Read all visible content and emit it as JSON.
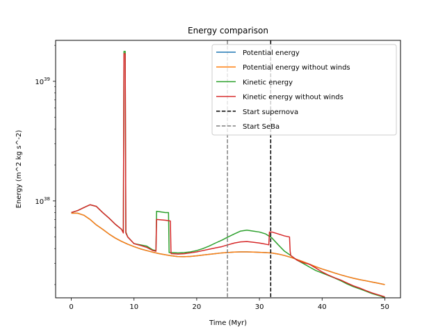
{
  "chart_data": {
    "type": "line",
    "title": "Energy comparison",
    "xlabel": "Time (Myr)",
    "ylabel": "Energy (m^2 kg s^-2)",
    "xlim": [
      -2.5,
      52.5
    ],
    "ylim": [
      1.55e+37,
      2.2e+39
    ],
    "yscale": "log",
    "x_ticks": [
      0,
      10,
      20,
      30,
      40,
      50
    ],
    "x_tick_labels": [
      "0",
      "10",
      "20",
      "30",
      "40",
      "50"
    ],
    "y_ticks": [
      1e+38,
      1e+39
    ],
    "y_tick_labels": [
      {
        "base": "10",
        "exp": "38"
      },
      {
        "base": "10",
        "exp": "39"
      }
    ],
    "grid": false,
    "legend_position": "upper right",
    "series": [
      {
        "name": "Potential energy",
        "color": "#1f77b4",
        "style": "solid",
        "points": [
          [
            0,
            7.9e+37
          ],
          [
            1,
            7.9e+37
          ],
          [
            2,
            7.6e+37
          ],
          [
            3,
            7e+37
          ],
          [
            4,
            6.3e+37
          ],
          [
            5,
            5.8e+37
          ],
          [
            6,
            5.3e+37
          ],
          [
            7,
            4.9e+37
          ],
          [
            8,
            4.6e+37
          ],
          [
            9,
            4.35e+37
          ],
          [
            10,
            4.15e+37
          ],
          [
            11,
            3.98e+37
          ],
          [
            12,
            3.85e+37
          ],
          [
            13,
            3.73e+37
          ],
          [
            14,
            3.63e+37
          ],
          [
            15,
            3.55e+37
          ],
          [
            16,
            3.48e+37
          ],
          [
            17,
            3.43e+37
          ],
          [
            18,
            3.42e+37
          ],
          [
            19,
            3.44e+37
          ],
          [
            20,
            3.48e+37
          ],
          [
            21,
            3.53e+37
          ],
          [
            22,
            3.58e+37
          ],
          [
            23,
            3.63e+37
          ],
          [
            24,
            3.68e+37
          ],
          [
            25,
            3.71e+37
          ],
          [
            26,
            3.74e+37
          ],
          [
            27,
            3.75e+37
          ],
          [
            28,
            3.75e+37
          ],
          [
            29,
            3.74e+37
          ],
          [
            30,
            3.72e+37
          ],
          [
            31,
            3.7e+37
          ],
          [
            32,
            3.67e+37
          ],
          [
            33,
            3.6e+37
          ],
          [
            34,
            3.5e+37
          ],
          [
            35,
            3.38e+37
          ],
          [
            36,
            3.24e+37
          ],
          [
            37,
            3.1e+37
          ],
          [
            38,
            2.96e+37
          ],
          [
            39,
            2.82e+37
          ],
          [
            40,
            2.7e+37
          ],
          [
            41,
            2.6e+37
          ],
          [
            42,
            2.5e+37
          ],
          [
            43,
            2.41e+37
          ],
          [
            44,
            2.33e+37
          ],
          [
            45,
            2.26e+37
          ],
          [
            46,
            2.2e+37
          ],
          [
            47,
            2.15e+37
          ],
          [
            48,
            2.1e+37
          ],
          [
            49,
            2.05e+37
          ],
          [
            50,
            2e+37
          ]
        ]
      },
      {
        "name": "Potential energy without winds",
        "color": "#ff7f0e",
        "style": "solid",
        "points": [
          [
            0,
            7.9e+37
          ],
          [
            1,
            7.9e+37
          ],
          [
            2,
            7.6e+37
          ],
          [
            3,
            7e+37
          ],
          [
            4,
            6.3e+37
          ],
          [
            5,
            5.8e+37
          ],
          [
            6,
            5.3e+37
          ],
          [
            7,
            4.9e+37
          ],
          [
            8,
            4.6e+37
          ],
          [
            9,
            4.35e+37
          ],
          [
            10,
            4.15e+37
          ],
          [
            11,
            3.98e+37
          ],
          [
            12,
            3.85e+37
          ],
          [
            13,
            3.73e+37
          ],
          [
            14,
            3.63e+37
          ],
          [
            15,
            3.55e+37
          ],
          [
            16,
            3.48e+37
          ],
          [
            17,
            3.43e+37
          ],
          [
            18,
            3.42e+37
          ],
          [
            19,
            3.44e+37
          ],
          [
            20,
            3.48e+37
          ],
          [
            21,
            3.53e+37
          ],
          [
            22,
            3.58e+37
          ],
          [
            23,
            3.63e+37
          ],
          [
            24,
            3.68e+37
          ],
          [
            25,
            3.71e+37
          ],
          [
            26,
            3.74e+37
          ],
          [
            27,
            3.75e+37
          ],
          [
            28,
            3.75e+37
          ],
          [
            29,
            3.74e+37
          ],
          [
            30,
            3.72e+37
          ],
          [
            31,
            3.7e+37
          ],
          [
            32,
            3.67e+37
          ],
          [
            33,
            3.6e+37
          ],
          [
            34,
            3.5e+37
          ],
          [
            35,
            3.38e+37
          ],
          [
            36,
            3.24e+37
          ],
          [
            37,
            3.1e+37
          ],
          [
            38,
            2.96e+37
          ],
          [
            39,
            2.82e+37
          ],
          [
            40,
            2.7e+37
          ],
          [
            41,
            2.6e+37
          ],
          [
            42,
            2.5e+37
          ],
          [
            43,
            2.41e+37
          ],
          [
            44,
            2.33e+37
          ],
          [
            45,
            2.26e+37
          ],
          [
            46,
            2.2e+37
          ],
          [
            47,
            2.15e+37
          ],
          [
            48,
            2.1e+37
          ],
          [
            49,
            2.05e+37
          ],
          [
            50,
            2e+37
          ]
        ]
      },
      {
        "name": "Kinetic energy",
        "color": "#2ca02c",
        "style": "solid",
        "points": [
          [
            0,
            8e+37
          ],
          [
            1,
            8.3e+37
          ],
          [
            2,
            8.8e+37
          ],
          [
            3,
            9.3e+37
          ],
          [
            4,
            9e+37
          ],
          [
            5,
            8e+37
          ],
          [
            6,
            7.2e+37
          ],
          [
            7,
            6.4e+37
          ],
          [
            8,
            5.8e+37
          ],
          [
            8.3,
            5.5e+37
          ],
          [
            8.4,
            1.78e+39
          ],
          [
            8.6,
            1.78e+39
          ],
          [
            8.7,
            5.5e+37
          ],
          [
            9,
            5e+37
          ],
          [
            10,
            4.4e+37
          ],
          [
            11,
            4.3e+37
          ],
          [
            12,
            4.2e+37
          ],
          [
            13,
            3.9e+37
          ],
          [
            13.5,
            3.85e+37
          ],
          [
            13.6,
            8.2e+37
          ],
          [
            15,
            8e+37
          ],
          [
            15.5,
            8e+37
          ],
          [
            15.6,
            3.7e+37
          ],
          [
            16,
            3.7e+37
          ],
          [
            17,
            3.68e+37
          ],
          [
            18,
            3.7e+37
          ],
          [
            19,
            3.75e+37
          ],
          [
            20,
            3.85e+37
          ],
          [
            21,
            4e+37
          ],
          [
            22,
            4.2e+37
          ],
          [
            23,
            4.45e+37
          ],
          [
            24,
            4.7e+37
          ],
          [
            25,
            5e+37
          ],
          [
            26,
            5.3e+37
          ],
          [
            27,
            5.6e+37
          ],
          [
            28,
            5.7e+37
          ],
          [
            29,
            5.6e+37
          ],
          [
            30,
            5.5e+37
          ],
          [
            31,
            5.3e+37
          ],
          [
            32,
            4.9e+37
          ],
          [
            33,
            4.3e+37
          ],
          [
            34,
            3.8e+37
          ],
          [
            35,
            3.5e+37
          ],
          [
            36,
            3.2e+37
          ],
          [
            37,
            3e+37
          ],
          [
            38,
            2.8e+37
          ],
          [
            39,
            2.62e+37
          ],
          [
            40,
            2.5e+37
          ],
          [
            41,
            2.38e+37
          ],
          [
            42,
            2.27e+37
          ],
          [
            43,
            2.15e+37
          ],
          [
            44,
            2.02e+37
          ],
          [
            45,
            1.92e+37
          ],
          [
            46,
            1.84e+37
          ],
          [
            47,
            1.76e+37
          ],
          [
            48,
            1.68e+37
          ],
          [
            49,
            1.62e+37
          ],
          [
            50,
            1.56e+37
          ]
        ]
      },
      {
        "name": "Kinetic energy without winds",
        "color": "#d62728",
        "style": "solid",
        "points": [
          [
            0,
            8e+37
          ],
          [
            1,
            8.3e+37
          ],
          [
            2,
            8.8e+37
          ],
          [
            3,
            9.3e+37
          ],
          [
            4,
            9e+37
          ],
          [
            5,
            8e+37
          ],
          [
            6,
            7.2e+37
          ],
          [
            7,
            6.4e+37
          ],
          [
            8,
            5.8e+37
          ],
          [
            8.3,
            5.4e+37
          ],
          [
            8.4,
            1.7e+39
          ],
          [
            8.6,
            1.7e+39
          ],
          [
            8.7,
            5.4e+37
          ],
          [
            9,
            5e+37
          ],
          [
            10,
            4.4e+37
          ],
          [
            11,
            4.25e+37
          ],
          [
            12,
            4.1e+37
          ],
          [
            13,
            3.85e+37
          ],
          [
            13.5,
            3.8e+37
          ],
          [
            13.6,
            7e+37
          ],
          [
            15,
            6.9e+37
          ],
          [
            15.8,
            6.8e+37
          ],
          [
            15.9,
            3.65e+37
          ],
          [
            16,
            3.62e+37
          ],
          [
            17,
            3.6e+37
          ],
          [
            18,
            3.62e+37
          ],
          [
            19,
            3.68e+37
          ],
          [
            20,
            3.75e+37
          ],
          [
            21,
            3.85e+37
          ],
          [
            22,
            3.95e+37
          ],
          [
            23,
            4.05e+37
          ],
          [
            24,
            4.15e+37
          ],
          [
            25,
            4.3e+37
          ],
          [
            26,
            4.45e+37
          ],
          [
            27,
            4.55e+37
          ],
          [
            28,
            4.58e+37
          ],
          [
            29,
            4.52e+37
          ],
          [
            30,
            4.45e+37
          ],
          [
            31,
            4.35e+37
          ],
          [
            31.5,
            4.3e+37
          ],
          [
            31.6,
            5.5e+37
          ],
          [
            32,
            5.5e+37
          ],
          [
            33,
            5.3e+37
          ],
          [
            34,
            5.1e+37
          ],
          [
            34.8,
            5e+37
          ],
          [
            34.9,
            3.8e+37
          ],
          [
            35,
            3.5e+37
          ],
          [
            36,
            3.2e+37
          ],
          [
            37,
            3.05e+37
          ],
          [
            38,
            2.95e+37
          ],
          [
            39,
            2.75e+37
          ],
          [
            40,
            2.55e+37
          ],
          [
            41,
            2.4e+37
          ],
          [
            42,
            2.28e+37
          ],
          [
            43,
            2.18e+37
          ],
          [
            44,
            2.06e+37
          ],
          [
            45,
            1.95e+37
          ],
          [
            46,
            1.87e+37
          ],
          [
            47,
            1.78e+37
          ],
          [
            48,
            1.7e+37
          ],
          [
            49,
            1.64e+37
          ],
          [
            50,
            1.58e+37
          ]
        ]
      }
    ],
    "vlines": [
      {
        "name": "Start supernova",
        "x": 31.8,
        "color": "#000000",
        "style": "dashed"
      },
      {
        "name": "Start SeBa",
        "x": 24.9,
        "color": "#7f7f7f",
        "style": "dashed"
      }
    ]
  }
}
